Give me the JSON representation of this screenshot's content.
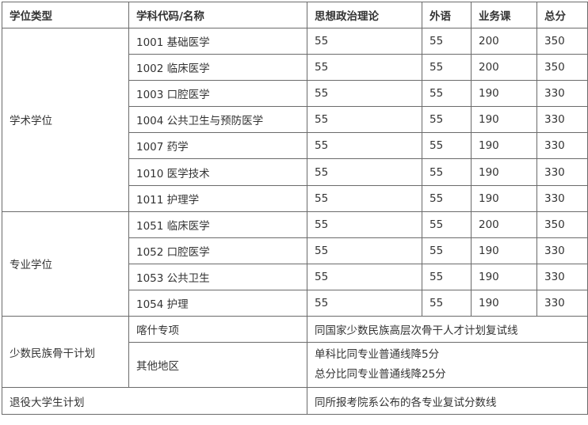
{
  "headers": [
    "学位类型",
    "学科代码/名称",
    "思想政治理论",
    "外语",
    "业务课",
    "总分"
  ],
  "academic": {
    "type": "学术学位",
    "rows": [
      [
        "1001 基础医学",
        "55",
        "55",
        "200",
        "350"
      ],
      [
        "1002 临床医学",
        "55",
        "55",
        "200",
        "350"
      ],
      [
        "1003 口腔医学",
        "55",
        "55",
        "190",
        "330"
      ],
      [
        "1004 公共卫生与预防医学",
        "55",
        "55",
        "190",
        "330"
      ],
      [
        "1007 药学",
        "55",
        "55",
        "190",
        "330"
      ],
      [
        "1010 医学技术",
        "55",
        "55",
        "190",
        "330"
      ],
      [
        "1011 护理学",
        "55",
        "55",
        "190",
        "330"
      ]
    ]
  },
  "professional": {
    "type": "专业学位",
    "rows": [
      [
        "1051 临床医学",
        "55",
        "55",
        "200",
        "350"
      ],
      [
        "1052 口腔医学",
        "55",
        "55",
        "190",
        "330"
      ],
      [
        "1053 公共卫生",
        "55",
        "55",
        "190",
        "330"
      ],
      [
        "1054 护理",
        "55",
        "55",
        "190",
        "330"
      ]
    ]
  },
  "minority": {
    "type": "少数民族骨干计划",
    "kashgar": {
      "name": "喀什专项",
      "rule": "同国家少数民族高层次骨干人才计划复试线"
    },
    "other": {
      "name": "其他地区",
      "rule_lines": [
        "单科比同专业普通线降5分",
        "总分比同专业普通线降25分"
      ]
    }
  },
  "veteran": {
    "type": "退役大学生计划",
    "rule": "同所报考院系公布的各专业复试分数线"
  }
}
